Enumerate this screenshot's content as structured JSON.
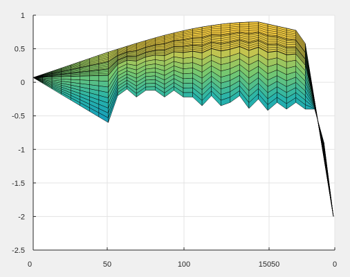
{
  "chart_data": {
    "type": "surface",
    "title": "",
    "xlabel": "",
    "ylabel": "",
    "zlabel": "",
    "zlim": [
      -2.5,
      1
    ],
    "grid": true,
    "colormap": "parula",
    "x_tick_labels": [
      "0",
      "50",
      "100",
      "15050",
      "0"
    ],
    "z_ticks": [
      1,
      0.5,
      0,
      -0.5,
      -1,
      -1.5,
      -2,
      -2.5
    ],
    "z_tick_labels": [
      "1",
      "0.5",
      "0",
      "-0.5",
      "-1",
      "-1.5",
      "-2",
      "-2.5"
    ],
    "front_edge": {
      "x": [
        0,
        40,
        45,
        50,
        55,
        60,
        65,
        70,
        75,
        80,
        85,
        90,
        95,
        100,
        105,
        110,
        115,
        120,
        125,
        130,
        135,
        140,
        145,
        150,
        155,
        160
      ],
      "z": [
        0.07,
        -0.6,
        -0.2,
        -0.1,
        -0.22,
        -0.12,
        -0.12,
        -0.22,
        -0.12,
        -0.22,
        -0.22,
        -0.35,
        -0.2,
        -0.35,
        -0.3,
        -0.2,
        -0.39,
        -0.25,
        -0.42,
        -0.3,
        -0.4,
        -0.3,
        -0.4,
        -0.4,
        -0.9,
        -2.0
      ]
    },
    "back_edge_max_z": 0.9
  },
  "colors": {
    "background": "#f0f0f0",
    "axes": "#ffffff",
    "grid": "#e3e3e3",
    "axis_line": "#262626",
    "mesh": "#000000"
  }
}
